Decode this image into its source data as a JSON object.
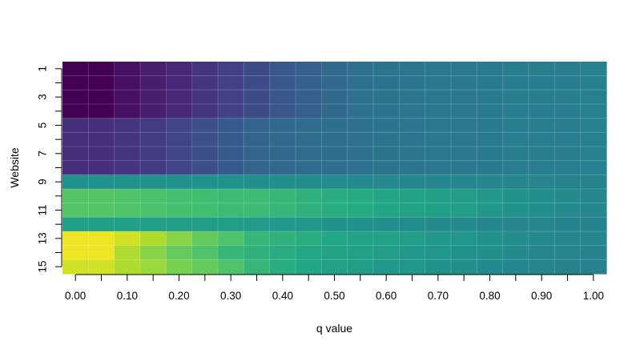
{
  "chart_data": {
    "type": "heatmap",
    "xlabel": "q value",
    "ylabel": "Website",
    "x_values": [
      0.0,
      0.05,
      0.1,
      0.15,
      0.2,
      0.25,
      0.3,
      0.35,
      0.4,
      0.45,
      0.5,
      0.55,
      0.6,
      0.65,
      0.7,
      0.75,
      0.8,
      0.85,
      0.9,
      0.95,
      1.0
    ],
    "x_tick_values": [
      0.0,
      0.05,
      0.1,
      0.15,
      0.2,
      0.25,
      0.3,
      0.35,
      0.4,
      0.45,
      0.5,
      0.55,
      0.6,
      0.65,
      0.7,
      0.75,
      0.8,
      0.85,
      0.9,
      0.95,
      1.0
    ],
    "x_tick_labels": [
      "0.00",
      "0.10",
      "0.20",
      "0.30",
      "0.40",
      "0.50",
      "0.60",
      "0.70",
      "0.80",
      "0.90",
      "1.00"
    ],
    "x_tick_label_values": [
      0.0,
      0.1,
      0.2,
      0.3,
      0.4,
      0.5,
      0.6,
      0.7,
      0.8,
      0.9,
      1.0
    ],
    "y_values": [
      1,
      2,
      3,
      4,
      5,
      6,
      7,
      8,
      9,
      10,
      11,
      12,
      13,
      14,
      15
    ],
    "y_tick_values": [
      1,
      2,
      3,
      4,
      5,
      6,
      7,
      8,
      9,
      10,
      11,
      12,
      13,
      14,
      15
    ],
    "y_tick_labels": [
      "1",
      "3",
      "5",
      "7",
      "9",
      "11",
      "13",
      "15"
    ],
    "y_tick_label_values": [
      1,
      3,
      5,
      7,
      9,
      11,
      13,
      15
    ],
    "colormap": "viridis",
    "grid": true,
    "values": [
      [
        0.0,
        0.0,
        0.04,
        0.08,
        0.11,
        0.15,
        0.19,
        0.23,
        0.27,
        0.3,
        0.34,
        0.37,
        0.38,
        0.39,
        0.4,
        0.4,
        0.41,
        0.42,
        0.42,
        0.42,
        0.43
      ],
      [
        0.0,
        0.0,
        0.04,
        0.08,
        0.11,
        0.15,
        0.19,
        0.23,
        0.27,
        0.3,
        0.34,
        0.37,
        0.38,
        0.39,
        0.4,
        0.4,
        0.41,
        0.42,
        0.42,
        0.42,
        0.43
      ],
      [
        0.0,
        0.0,
        0.04,
        0.08,
        0.11,
        0.15,
        0.19,
        0.23,
        0.27,
        0.3,
        0.34,
        0.37,
        0.38,
        0.39,
        0.4,
        0.4,
        0.41,
        0.42,
        0.42,
        0.42,
        0.43
      ],
      [
        0.0,
        0.0,
        0.04,
        0.08,
        0.11,
        0.15,
        0.19,
        0.23,
        0.27,
        0.3,
        0.34,
        0.37,
        0.38,
        0.39,
        0.4,
        0.4,
        0.41,
        0.42,
        0.42,
        0.42,
        0.43
      ],
      [
        0.13,
        0.13,
        0.15,
        0.17,
        0.2,
        0.24,
        0.28,
        0.32,
        0.34,
        0.35,
        0.36,
        0.37,
        0.38,
        0.39,
        0.4,
        0.4,
        0.41,
        0.42,
        0.42,
        0.42,
        0.43
      ],
      [
        0.13,
        0.13,
        0.15,
        0.17,
        0.2,
        0.24,
        0.28,
        0.32,
        0.34,
        0.35,
        0.36,
        0.37,
        0.38,
        0.39,
        0.4,
        0.4,
        0.41,
        0.42,
        0.42,
        0.42,
        0.43
      ],
      [
        0.13,
        0.13,
        0.15,
        0.17,
        0.2,
        0.24,
        0.28,
        0.32,
        0.34,
        0.35,
        0.36,
        0.37,
        0.38,
        0.39,
        0.4,
        0.4,
        0.41,
        0.42,
        0.42,
        0.42,
        0.43
      ],
      [
        0.13,
        0.13,
        0.15,
        0.17,
        0.2,
        0.24,
        0.28,
        0.32,
        0.34,
        0.35,
        0.36,
        0.37,
        0.38,
        0.39,
        0.4,
        0.4,
        0.41,
        0.42,
        0.42,
        0.42,
        0.43
      ],
      [
        0.5,
        0.5,
        0.5,
        0.5,
        0.5,
        0.5,
        0.5,
        0.49,
        0.49,
        0.48,
        0.48,
        0.47,
        0.47,
        0.46,
        0.46,
        0.46,
        0.45,
        0.45,
        0.45,
        0.44,
        0.44
      ],
      [
        0.73,
        0.73,
        0.72,
        0.71,
        0.7,
        0.69,
        0.68,
        0.68,
        0.66,
        0.64,
        0.62,
        0.61,
        0.59,
        0.58,
        0.56,
        0.55,
        0.53,
        0.51,
        0.49,
        0.47,
        0.46
      ],
      [
        0.73,
        0.73,
        0.72,
        0.71,
        0.7,
        0.69,
        0.68,
        0.68,
        0.66,
        0.64,
        0.62,
        0.61,
        0.59,
        0.58,
        0.56,
        0.55,
        0.53,
        0.51,
        0.49,
        0.47,
        0.46
      ],
      [
        0.56,
        0.56,
        0.56,
        0.56,
        0.55,
        0.55,
        0.55,
        0.54,
        0.53,
        0.52,
        0.51,
        0.5,
        0.49,
        0.48,
        0.47,
        0.47,
        0.46,
        0.45,
        0.45,
        0.44,
        0.44
      ],
      [
        0.98,
        0.98,
        0.93,
        0.88,
        0.82,
        0.76,
        0.72,
        0.66,
        0.64,
        0.62,
        0.6,
        0.58,
        0.57,
        0.55,
        0.53,
        0.52,
        0.5,
        0.49,
        0.47,
        0.46,
        0.45
      ],
      [
        0.98,
        0.98,
        0.88,
        0.82,
        0.76,
        0.72,
        0.66,
        0.64,
        0.62,
        0.6,
        0.58,
        0.57,
        0.55,
        0.53,
        0.52,
        0.5,
        0.49,
        0.47,
        0.46,
        0.45,
        0.44
      ],
      [
        0.93,
        0.93,
        0.88,
        0.85,
        0.8,
        0.76,
        0.72,
        0.66,
        0.62,
        0.59,
        0.57,
        0.55,
        0.53,
        0.52,
        0.5,
        0.49,
        0.47,
        0.46,
        0.45,
        0.44,
        0.43
      ]
    ]
  }
}
